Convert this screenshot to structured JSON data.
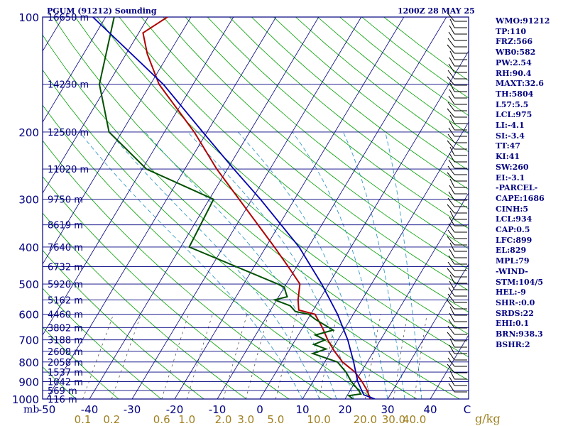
{
  "header": {
    "title": "PGUM (91212) Sounding",
    "timestamp": "1200Z 28 MAY 25"
  },
  "indices": [
    "WMO:91212",
    "TP:110",
    "FRZ:566",
    "WB0:582",
    "PW:2.54",
    "RH:90.4",
    "MAXT:32.6",
    "TH:5804",
    "L57:5.5",
    "LCL:975",
    "LI:-4.1",
    "SI:-3.4",
    "TT:47",
    "KI:41",
    "SW:260",
    "EI:-3.1",
    "-PARCEL-",
    "CAPE:1686",
    "CINH:5",
    "LCL:934",
    "CAP:0.5",
    "LFC:899",
    "EL:829",
    "MPL:79",
    "-WIND-",
    "STM:104/5",
    "HEL:-9",
    "SHR-:0.0",
    "SRDS:22",
    "EHI:0.1",
    "BRN:938.3",
    "BSHR:2"
  ],
  "colors": {
    "frame": "#000080",
    "isobar": "#000080",
    "isotherm": "#000080",
    "dry_adiabat": "#00a000",
    "moist_adiabat": "#2090c0",
    "mixing_ratio": "#404040",
    "temperature": "#b00000",
    "dewpoint": "#005000",
    "parcel": "#0000b0",
    "wind_barbs": "#000000",
    "axis_text": "#000080",
    "mixing_text": "#a08020"
  },
  "chart_data": {
    "type": "line",
    "title": "PGUM (91212) Sounding",
    "subtitle": "1200Z 28 MAY 25",
    "xlabel": "",
    "ylabel": "mb",
    "x_units": "C",
    "ylim": [
      1000,
      100
    ],
    "xlim": [
      -50,
      50
    ],
    "y_scale": "log",
    "grid": true,
    "pressure_ticks": [
      100,
      200,
      300,
      400,
      500,
      600,
      700,
      800,
      900,
      1000
    ],
    "temperature_ticks": [
      -50,
      -40,
      -30,
      -20,
      -10,
      0,
      10,
      20,
      30,
      40
    ],
    "height_labels": [
      {
        "p": 100,
        "label": "16650 m"
      },
      {
        "p": 150,
        "label": "14230 m"
      },
      {
        "p": 200,
        "label": "12500 m"
      },
      {
        "p": 250,
        "label": "11020 m"
      },
      {
        "p": 300,
        "label": "9750 m"
      },
      {
        "p": 350,
        "label": "8619 m"
      },
      {
        "p": 400,
        "label": "7640 m"
      },
      {
        "p": 450,
        "label": "6732 m"
      },
      {
        "p": 500,
        "label": "5920 m"
      },
      {
        "p": 550,
        "label": "5162 m"
      },
      {
        "p": 600,
        "label": "4460 m"
      },
      {
        "p": 650,
        "label": "3802 m"
      },
      {
        "p": 700,
        "label": "3188 m"
      },
      {
        "p": 750,
        "label": "2608 m"
      },
      {
        "p": 800,
        "label": "2058 m"
      },
      {
        "p": 850,
        "label": "1537 m"
      },
      {
        "p": 900,
        "label": "1042 m"
      },
      {
        "p": 950,
        "label": "569 m"
      },
      {
        "p": 1000,
        "label": "116 m"
      }
    ],
    "mixing_ratio_labels": [
      "0.1",
      "0.2",
      "0.6",
      "1.0",
      "2.0",
      "3.0",
      "5.0",
      "10.0",
      "20.0",
      "30.0",
      "40.0"
    ],
    "mixing_ratio_unit": "g/kg",
    "series": [
      {
        "name": "temperature",
        "points": [
          {
            "p": 1000,
            "t": 25.9
          },
          {
            "p": 950,
            "t": 24.0
          },
          {
            "p": 900,
            "t": 21.5
          },
          {
            "p": 850,
            "t": 18.5
          },
          {
            "p": 800,
            "t": 14.2
          },
          {
            "p": 750,
            "t": 10.8
          },
          {
            "p": 700,
            "t": 7.6
          },
          {
            "p": 650,
            "t": 4.6
          },
          {
            "p": 600,
            "t": 1.0
          },
          {
            "p": 585,
            "t": -3.4
          },
          {
            "p": 550,
            "t": -5.0
          },
          {
            "p": 500,
            "t": -6.8
          },
          {
            "p": 450,
            "t": -12.0
          },
          {
            "p": 400,
            "t": -18.0
          },
          {
            "p": 300,
            "t": -33.0
          },
          {
            "p": 250,
            "t": -42.5
          },
          {
            "p": 200,
            "t": -53.0
          },
          {
            "p": 150,
            "t": -68.0
          },
          {
            "p": 125,
            "t": -75.0
          },
          {
            "p": 110,
            "t": -79.0
          },
          {
            "p": 100,
            "t": -75.5
          }
        ]
      },
      {
        "name": "dewpoint",
        "points": [
          {
            "p": 1000,
            "t": 21.9
          },
          {
            "p": 980,
            "t": 20.4
          },
          {
            "p": 970,
            "t": 23.0
          },
          {
            "p": 950,
            "t": 22.0
          },
          {
            "p": 900,
            "t": 19.0
          },
          {
            "p": 850,
            "t": 16.4
          },
          {
            "p": 800,
            "t": 13.0
          },
          {
            "p": 760,
            "t": 6.0
          },
          {
            "p": 740,
            "t": 8.5
          },
          {
            "p": 720,
            "t": 5.0
          },
          {
            "p": 700,
            "t": 7.0
          },
          {
            "p": 680,
            "t": 4.0
          },
          {
            "p": 660,
            "t": 7.5
          },
          {
            "p": 620,
            "t": 2.0
          },
          {
            "p": 600,
            "t": -0.5
          },
          {
            "p": 590,
            "t": -4.0
          },
          {
            "p": 570,
            "t": -6.0
          },
          {
            "p": 550,
            "t": -10.5
          },
          {
            "p": 540,
            "t": -8.0
          },
          {
            "p": 510,
            "t": -10.0
          },
          {
            "p": 500,
            "t": -12.0
          },
          {
            "p": 400,
            "t": -38.0
          },
          {
            "p": 300,
            "t": -39.0
          },
          {
            "p": 250,
            "t": -59.0
          },
          {
            "p": 200,
            "t": -73.0
          },
          {
            "p": 150,
            "t": -82.0
          },
          {
            "p": 100,
            "t": -88.0
          }
        ]
      },
      {
        "name": "parcel",
        "points": [
          {
            "p": 1000,
            "t": 27.0
          },
          {
            "p": 975,
            "t": 23.8
          },
          {
            "p": 900,
            "t": 20.5
          },
          {
            "p": 800,
            "t": 16.8
          },
          {
            "p": 700,
            "t": 12.3
          },
          {
            "p": 600,
            "t": 6.3
          },
          {
            "p": 500,
            "t": -1.7
          },
          {
            "p": 400,
            "t": -12.2
          },
          {
            "p": 300,
            "t": -28.0
          },
          {
            "p": 250,
            "t": -38.5
          },
          {
            "p": 200,
            "t": -51.0
          },
          {
            "p": 150,
            "t": -67.0
          },
          {
            "p": 100,
            "t": -93.0
          }
        ]
      }
    ]
  }
}
